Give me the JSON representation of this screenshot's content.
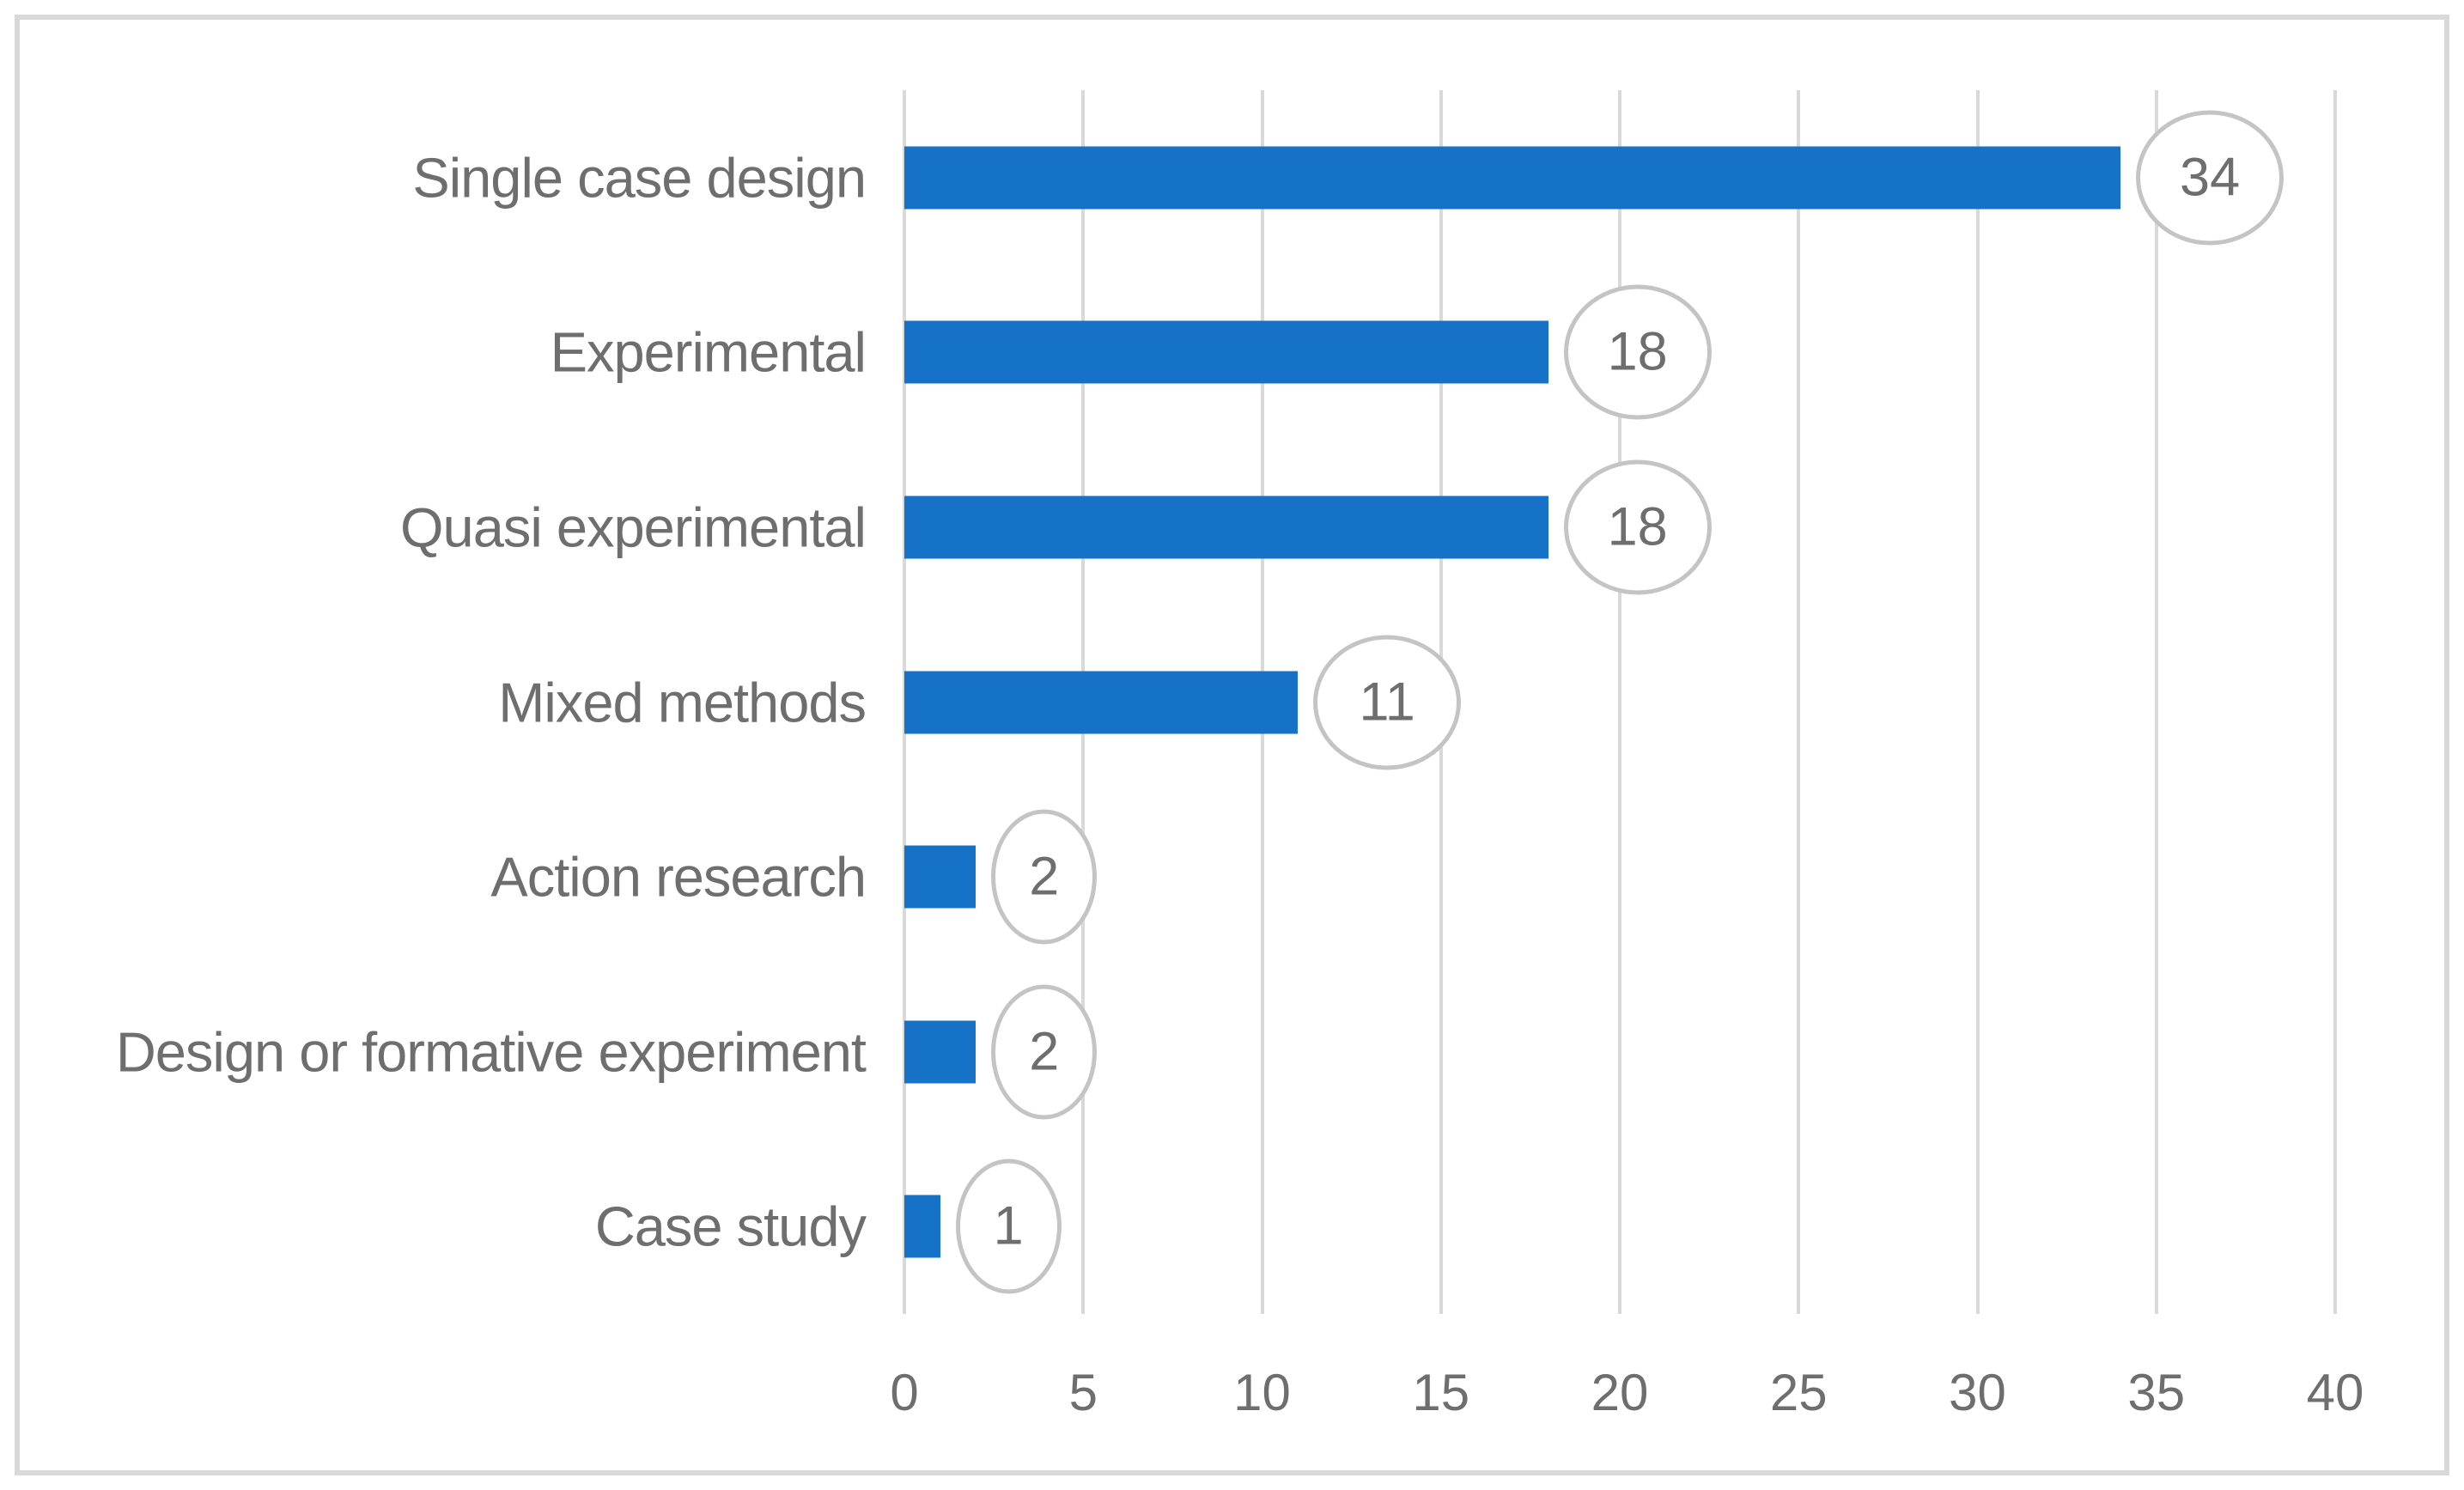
{
  "chart_data": {
    "type": "bar",
    "orientation": "horizontal",
    "title": "",
    "xlabel": "",
    "ylabel": "",
    "categories": [
      "Single case design",
      "Experimental",
      "Quasi experimental",
      "Mixed methods",
      "Action research",
      "Design or formative experiment",
      "Case study"
    ],
    "values": [
      34,
      18,
      18,
      11,
      2,
      2,
      1
    ],
    "data_labels": [
      "34",
      "18",
      "18",
      "11",
      "2",
      "2",
      "1"
    ],
    "data_label_shape": "circled-oval",
    "xlim": [
      0,
      40
    ],
    "x_ticks": [
      0,
      5,
      10,
      15,
      20,
      25,
      30,
      35,
      40
    ],
    "x_tick_labels": [
      "0",
      "5",
      "10",
      "15",
      "20",
      "25",
      "30",
      "35",
      "40"
    ],
    "grid": "vertical",
    "legend": "none",
    "colors": {
      "bar": "#1672C7",
      "gridline": "#D9D9D9",
      "frame_border": "#D9D9D9",
      "oval_stroke": "#C4C4C4",
      "oval_fill": "#FFFFFF",
      "text": "#6E6E6E"
    }
  }
}
